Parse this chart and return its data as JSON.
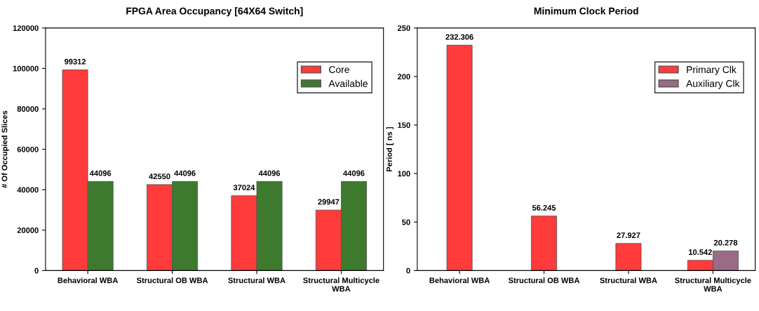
{
  "chart_data": [
    {
      "type": "bar",
      "title": "FPGA Area Occupancy [64X64 Switch]",
      "ylabel": "# Of Occupied Slices",
      "categories": [
        "Behavioral WBA",
        "Structural OB WBA",
        "Structural WBA",
        "Structural Multicycle WBA"
      ],
      "series": [
        {
          "name": "Core",
          "color": "#ff3b3b",
          "values": [
            99312,
            42550,
            37024,
            29947
          ]
        },
        {
          "name": "Available",
          "color": "#3d7a2e",
          "values": [
            44096,
            44096,
            44096,
            44096
          ]
        }
      ],
      "ylim": [
        0,
        120000
      ],
      "yticks": [
        0,
        20000,
        40000,
        60000,
        80000,
        100000,
        120000
      ],
      "grid": false,
      "legend": "top right",
      "data_labels": true
    },
    {
      "type": "bar",
      "title": "Minimum Clock Period",
      "ylabel": "Period [ ns ]",
      "categories": [
        "Behavioral WBA",
        "Structural OB WBA",
        "Structural WBA",
        "Structural Multicycle WBA"
      ],
      "series": [
        {
          "name": "Primary Clk",
          "color": "#ff3b3b",
          "values": [
            232.306,
            56.245,
            27.927,
            10.542
          ]
        },
        {
          "name": "Auxiliary Clk",
          "color": "#9a6a86",
          "values": [
            null,
            null,
            null,
            20.278
          ]
        }
      ],
      "ylim": [
        0,
        250
      ],
      "yticks": [
        0,
        50,
        100,
        150,
        200,
        250
      ],
      "grid": false,
      "legend": "top right",
      "data_labels": true
    }
  ]
}
